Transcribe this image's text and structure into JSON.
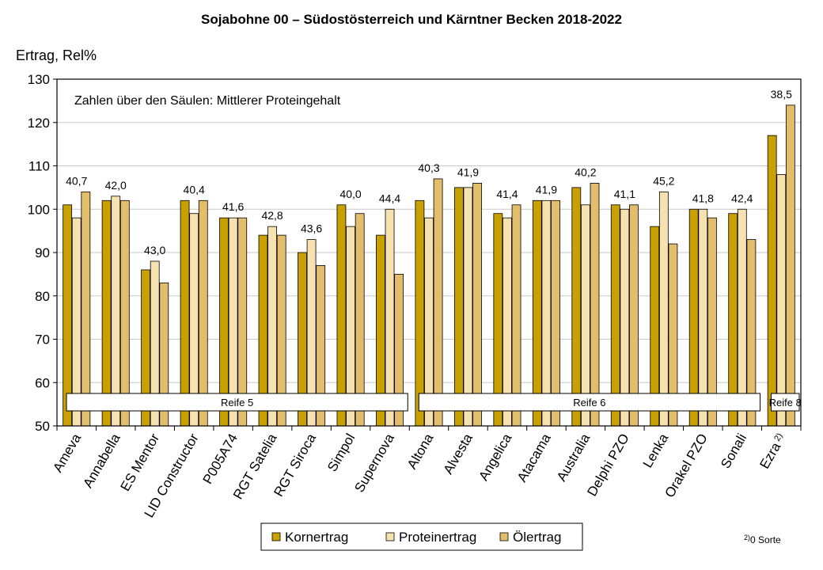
{
  "chart_data": {
    "type": "bar",
    "title": "Sojabohne 00 – Südostösterreich und Kärntner Becken 2018-2022",
    "ylabel": "Ertrag, Rel%",
    "ylim": [
      50,
      130
    ],
    "yticks": [
      50,
      60,
      70,
      80,
      90,
      100,
      110,
      120,
      130
    ],
    "grid": true,
    "annotation": "Zahlen über den Säulen: Mittlerer Proteingehalt",
    "categories": [
      "Ameva",
      "Annabella",
      "ES Mentor",
      "LID Constructor",
      "P005A74",
      "RGT Satelia",
      "RGT Siroca",
      "Simpol",
      "Supernova",
      "Altona",
      "Alvesta",
      "Angelica",
      "Atacama",
      "Australia",
      "Delphi PZO",
      "Lenka",
      "Orakel PZO",
      "Sonali",
      "Ezra"
    ],
    "category_superscripts": [
      "",
      "",
      "",
      "",
      "",
      "",
      "",
      "",
      "",
      "",
      "",
      "",
      "",
      "",
      "",
      "",
      "",
      "",
      "2)"
    ],
    "series": [
      {
        "name": "Kornertrag",
        "color": "#C8A000",
        "values": [
          101,
          102,
          86,
          102,
          98,
          94,
          90,
          101,
          94,
          102,
          105,
          99,
          102,
          105,
          101,
          96,
          100,
          99,
          117
        ]
      },
      {
        "name": "Proteinertrag",
        "color": "#F5E2B0",
        "values": [
          98,
          103,
          88,
          99,
          98,
          96,
          93,
          96,
          100,
          98,
          105,
          98,
          102,
          101,
          100,
          104,
          100,
          100,
          108
        ]
      },
      {
        "name": "Ölertrag",
        "color": "#E2BE6C",
        "values": [
          104,
          102,
          83,
          102,
          98,
          94,
          87,
          99,
          85,
          107,
          106,
          101,
          102,
          106,
          101,
          92,
          98,
          93,
          124
        ]
      }
    ],
    "data_labels": [
      "40,7",
      "42,0",
      "43,0",
      "40,4",
      "41,6",
      "42,8",
      "43,6",
      "40,0",
      "44,4",
      "40,3",
      "41,9",
      "41,4",
      "41,9",
      "40,2",
      "41,1",
      "45,2",
      "41,8",
      "42,4",
      "38,5"
    ],
    "groups": [
      {
        "label": "Reife 5",
        "from": 0,
        "to": 8
      },
      {
        "label": "Reife 6",
        "from": 9,
        "to": 17
      },
      {
        "label": "Reife 8",
        "from": 18,
        "to": 18
      }
    ],
    "legend_position": "bottom-center",
    "footnote_mark": "2)",
    "footnote_text": "0 Sorte"
  }
}
